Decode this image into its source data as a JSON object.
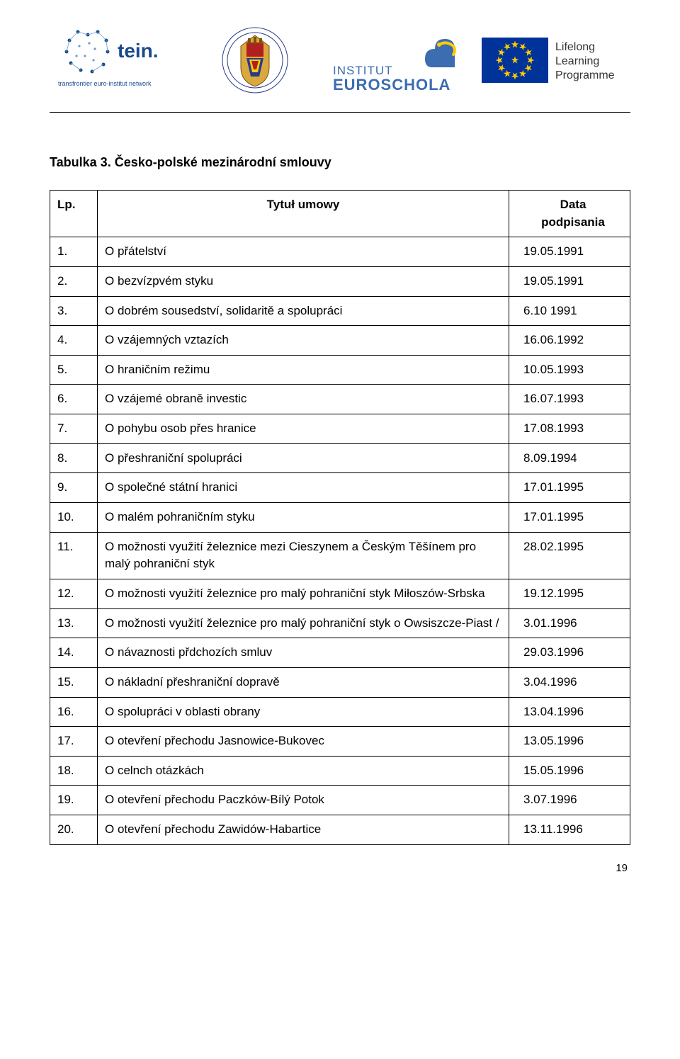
{
  "logos": {
    "tein_name": "tein.",
    "tein_sub": "transfrontier euro-institut network",
    "euroschola_top": "INSTITUT",
    "euroschola_bottom": "EUROSCHOLA",
    "llp_l1": "Lifelong",
    "llp_l2": "Learning",
    "llp_l3": "Programme"
  },
  "table_title": "Tabulka 3. Česko-polské mezinárodní smlouvy",
  "header": {
    "lp": "Lp.",
    "title": "Tytuł umowy",
    "date_l1": "Data",
    "date_l2": "podpisania"
  },
  "rows": [
    {
      "n": "1.",
      "t": "O přátelství",
      "d": "19.05.1991"
    },
    {
      "n": "2.",
      "t": "O bezvízpvém styku",
      "d": "19.05.1991"
    },
    {
      "n": "3.",
      "t": "O dobrém sousedství, solidaritě a spolupráci",
      "d": "6.10 1991"
    },
    {
      "n": "4.",
      "t": "O vzájemných vztazích",
      "d": "16.06.1992"
    },
    {
      "n": "5.",
      "t": "O hraničním režimu",
      "d": "10.05.1993"
    },
    {
      "n": "6.",
      "t": "O vzájemé obraně investic",
      "d": "16.07.1993"
    },
    {
      "n": "7.",
      "t": "O pohybu osob přes hranice",
      "d": "17.08.1993"
    },
    {
      "n": "8.",
      "t": "O přeshraniční spolupráci",
      "d": "8.09.1994"
    },
    {
      "n": "9.",
      "t": "O společné státní hranici",
      "d": "17.01.1995"
    },
    {
      "n": "10.",
      "t": "O malém pohraničním styku",
      "d": "17.01.1995"
    },
    {
      "n": "11.",
      "t": "O možnosti využití železnice mezi Cieszynem a Českým Těšínem pro malý pohraniční styk",
      "d": "28.02.1995"
    },
    {
      "n": "12.",
      "t": "O možnosti využití železnice pro malý pohraniční styk Miłoszów-Srbska",
      "d": "19.12.1995"
    },
    {
      "n": "13.",
      "t": "O možnosti využití železnice pro malý pohraniční styk o Owsiszcze-Piast /",
      "d": "3.01.1996"
    },
    {
      "n": "14.",
      "t": "O návaznosti přdchozích smluv",
      "d": "29.03.1996"
    },
    {
      "n": "15.",
      "t": "O nákladní přeshraniční dopravě",
      "d": "3.04.1996"
    },
    {
      "n": "16.",
      "t": "O spolupráci v oblasti obrany",
      "d": "13.04.1996"
    },
    {
      "n": "17.",
      "t": "O otevření přechodu Jasnowice-Bukovec",
      "d": "13.05.1996"
    },
    {
      "n": "18.",
      "t": "O celnch otázkách",
      "d": "15.05.1996"
    },
    {
      "n": "19.",
      "t": "O otevření přechodu Paczków-Bílý Potok",
      "d": "3.07.1996"
    },
    {
      "n": "20.",
      "t": "O otevření přechodu Zawidów-Habartice",
      "d": "13.11.1996"
    }
  ],
  "page_number": "19",
  "colors": {
    "tein_blue": "#1a4a8a",
    "eu_blue": "#003399",
    "eu_gold": "#ffcc00",
    "euroschola_blue": "#3b6db0",
    "crest_gold": "#d9a83f",
    "crest_red": "#b02020",
    "crest_blue": "#2a3a8a"
  }
}
